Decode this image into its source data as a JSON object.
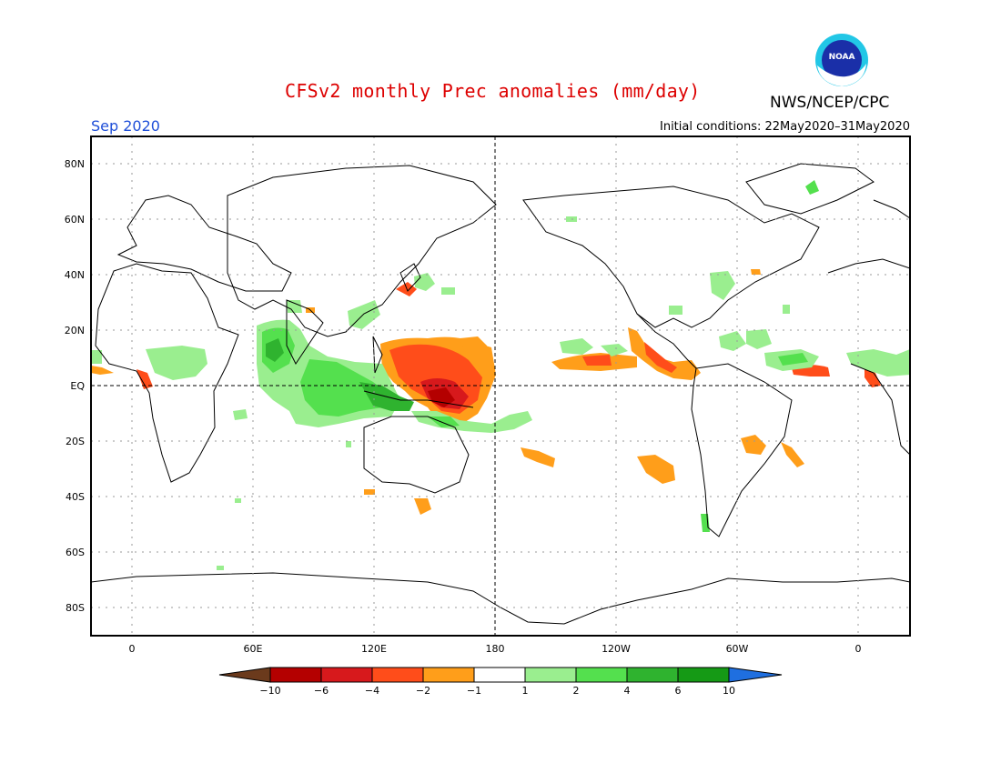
{
  "title": "CFSv2 monthly Prec anomalies (mm/day)",
  "agency": "NWS/NCEP/CPC",
  "logo_text": "NOAA",
  "month": "Sep 2020",
  "initial_conditions": "Initial conditions: 22May2020–31May2020",
  "lat_labels": [
    "80N",
    "60N",
    "40N",
    "20N",
    "EQ",
    "20S",
    "40S",
    "60S",
    "80S"
  ],
  "lon_labels": [
    "0",
    "60E",
    "120E",
    "180",
    "120W",
    "60W",
    "0"
  ],
  "colorbar": {
    "labels": [
      "−10",
      "−6",
      "−4",
      "−2",
      "−1",
      "1",
      "2",
      "4",
      "6",
      "10"
    ],
    "colors": [
      "#6b3a1c",
      "#b40000",
      "#d7191c",
      "#ff4d1a",
      "#ff9e1a",
      "#ffffff",
      "#9aee8f",
      "#54e04e",
      "#2fb32f",
      "#159a15",
      "#1f6fe0"
    ]
  },
  "legend_colors": {
    "dry_strong": "#d7191c",
    "dry_mid": "#ff4d1a",
    "dry_light": "#ff9e1a",
    "wet_light": "#9aee8f",
    "wet_mid": "#54e04e",
    "wet_strong": "#2fb32f"
  }
}
